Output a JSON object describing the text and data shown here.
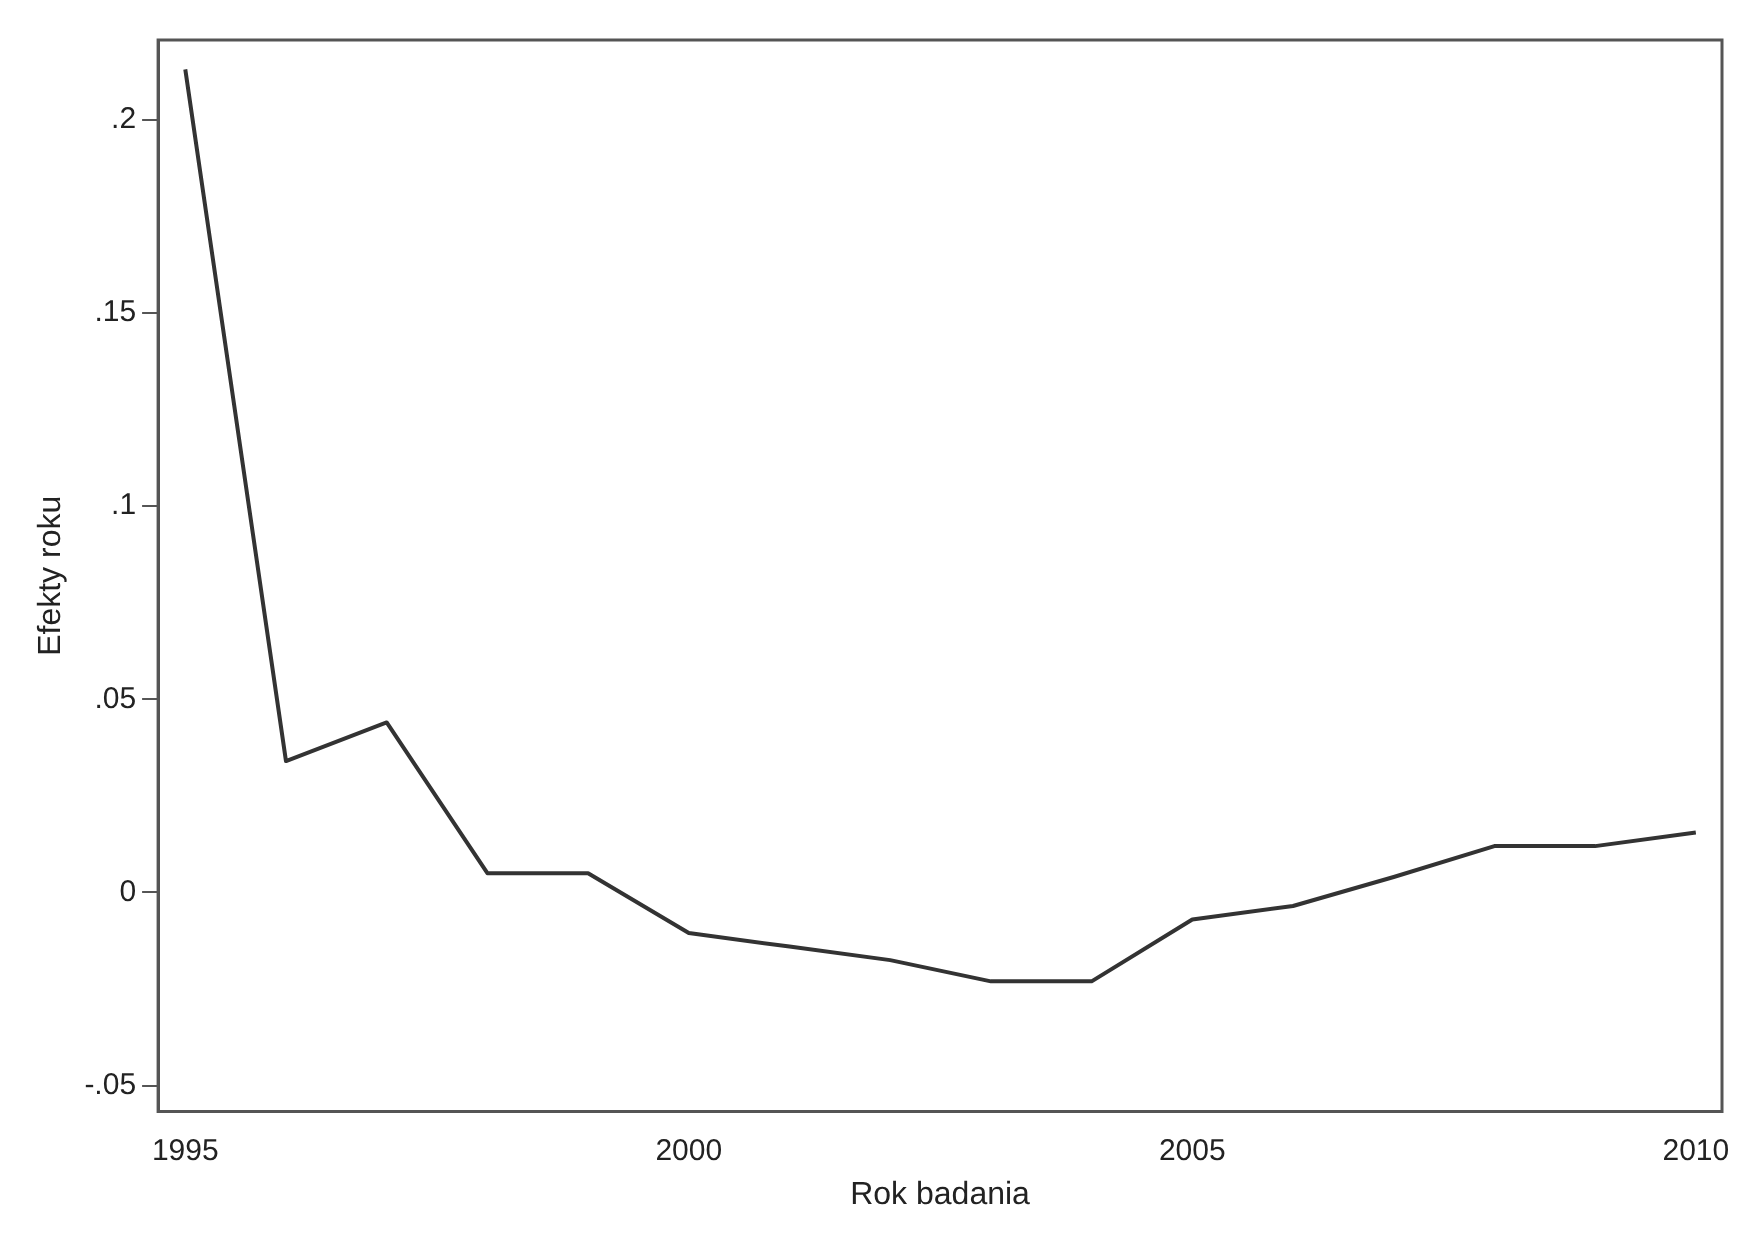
{
  "chart_data": {
    "type": "line",
    "xlabel": "Rok badania",
    "ylabel": "Efekty roku",
    "x": [
      1995,
      1996,
      1997,
      1998,
      1999,
      2000,
      2001,
      2002,
      2003,
      2004,
      2005,
      2006,
      2007,
      2008,
      2009,
      2010
    ],
    "series": [
      {
        "color": "#333333",
        "values": [
          0.213,
          0.034,
          0.044,
          0.005,
          0.005,
          -0.0105,
          -0.014,
          -0.0175,
          -0.023,
          -0.023,
          -0.007,
          -0.0035,
          0.004,
          0.012,
          0.012,
          0.0155
        ]
      }
    ],
    "xlim": [
      1994.73,
      2010.26
    ],
    "xticks": [
      1995,
      2000,
      2005,
      2010
    ],
    "ylim": [
      -0.0567,
      0.2206
    ],
    "yticks": [
      {
        "value": -0.05,
        "label": "-.05"
      },
      {
        "value": 0,
        "label": "0"
      },
      {
        "value": 0.05,
        "label": ".05"
      },
      {
        "value": 0.1,
        "label": ".1"
      },
      {
        "value": 0.15,
        "label": ".15"
      },
      {
        "value": 0.2,
        "label": ".2"
      }
    ],
    "grid": false,
    "legend": false,
    "marker": "none",
    "line_style": "solid"
  }
}
